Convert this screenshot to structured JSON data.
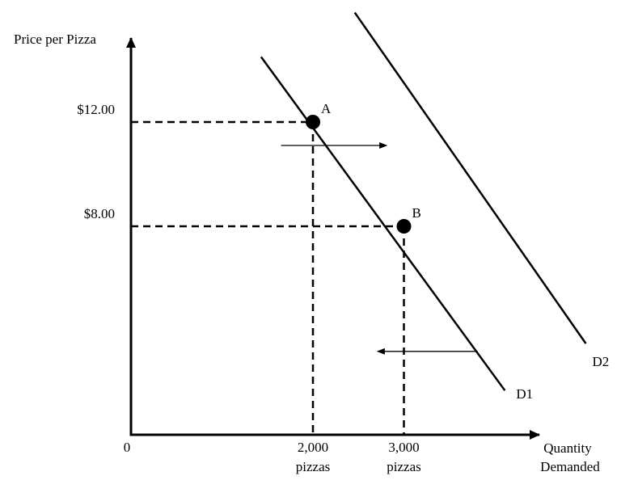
{
  "chart_data": {
    "type": "line",
    "title": "",
    "xlabel": [
      "Quantity",
      "Demanded"
    ],
    "ylabel": "Price per Pizza",
    "origin_label": "0",
    "x_ticks": [
      {
        "value": 2000,
        "line1": "2,000",
        "line2": "pizzas"
      },
      {
        "value": 3000,
        "line1": "3,000",
        "line2": "pizzas"
      }
    ],
    "y_ticks": [
      {
        "value": 12,
        "label": "$12.00"
      },
      {
        "value": 8,
        "label": "$8.00"
      }
    ],
    "series": [
      {
        "name": "D1",
        "points": [
          [
            1430,
            14.5
          ],
          [
            4110,
            1.7
          ]
        ]
      },
      {
        "name": "D2",
        "points": [
          [
            2460,
            16.2
          ],
          [
            5000,
            3.5
          ]
        ]
      }
    ],
    "points": [
      {
        "label": "A",
        "x": 2000,
        "y": 12
      },
      {
        "label": "B",
        "x": 3000,
        "y": 8
      }
    ],
    "shift_arrows": [
      {
        "from": [
          1650,
          11.1
        ],
        "to": [
          2810,
          11.1
        ],
        "direction": "right"
      },
      {
        "from": [
          3810,
          3.2
        ],
        "to": [
          2710,
          3.2
        ],
        "direction": "left"
      }
    ],
    "guides": "dashed",
    "xlim": [
      0,
      4500
    ],
    "ylim": [
      0,
      16.2
    ]
  }
}
